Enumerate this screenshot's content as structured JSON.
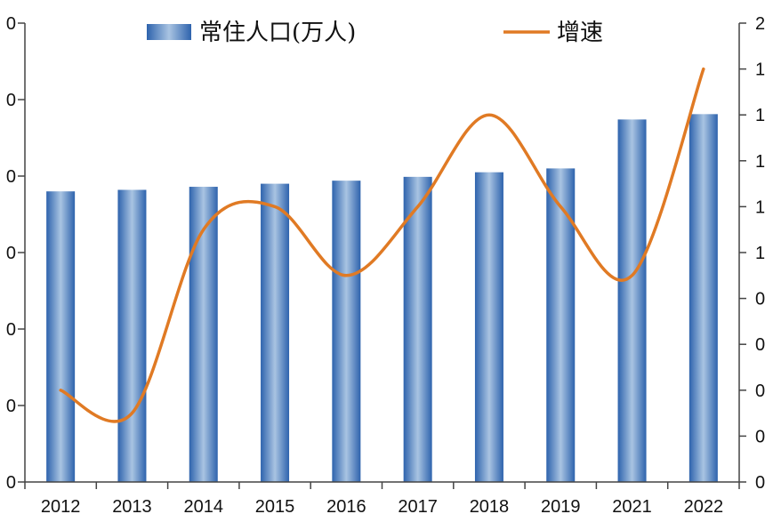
{
  "chart_data": {
    "type": "bar+line",
    "categories": [
      "2012",
      "2013",
      "2014",
      "2015",
      "2016",
      "2017",
      "2018",
      "2019",
      "2021",
      "2022"
    ],
    "series": [
      {
        "name": "常住人口(万人)",
        "type": "bar",
        "axis": "left",
        "values": [
          380,
          382,
          386,
          390,
          394,
          399,
          405,
          410,
          474,
          481
        ]
      },
      {
        "name": "增速",
        "type": "line",
        "axis": "right",
        "smooth": true,
        "values": [
          0.4,
          0.3,
          1.1,
          1.2,
          0.9,
          1.2,
          1.6,
          1.2,
          0.9,
          1.8
        ]
      }
    ],
    "y_left": {
      "range": [
        0,
        600
      ],
      "ticks": [
        "0",
        "0",
        "0",
        "0",
        "0",
        "0",
        "0"
      ]
    },
    "y_right": {
      "range": [
        0,
        2.0
      ],
      "ticks": [
        "0",
        "0",
        "0",
        "0",
        "0",
        "1",
        "1",
        "1",
        "1",
        "1",
        "2"
      ]
    },
    "legend_position": "top",
    "grid": false,
    "colors": {
      "bar": "#4a7fc1",
      "bar_highlight": "#a9c4e2",
      "line": "#e07a24",
      "axis": "#444444"
    }
  }
}
